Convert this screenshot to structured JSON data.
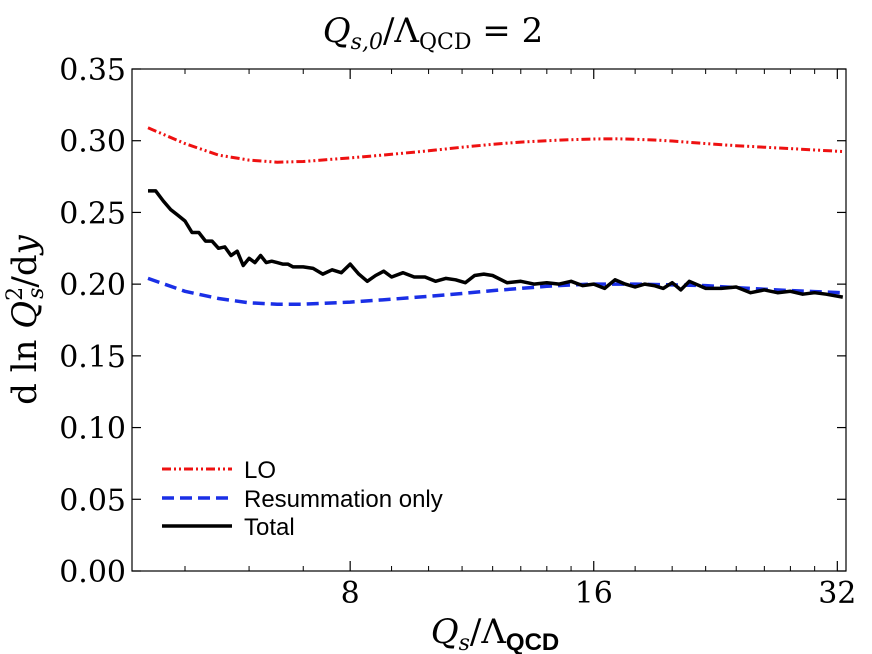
{
  "chart_data": {
    "type": "line",
    "title": "Q_{s,0}/Λ_QCD = 2",
    "title_parts": {
      "q": "Q",
      "sub": "s,0",
      "rest": "/Λ",
      "lam_sub": "QCD",
      "eq": " = 2"
    },
    "xlabel": "Q_s/Λ_QCD",
    "xlabel_parts": {
      "q": "Q",
      "sub": "s",
      "rest": "/Λ",
      "lam_sub": "QCD"
    },
    "ylabel": "d ln Q_s^2/dy",
    "ylabel_parts": {
      "pre": "d ln ",
      "q": "Q",
      "sup": "2",
      "sub": "s",
      "post": "/d",
      "y": "y"
    },
    "xscale": "log2",
    "xlim": [
      4.3,
      32.8
    ],
    "ylim": [
      0.0,
      0.35
    ],
    "x_ticks": [
      8,
      16,
      32
    ],
    "x_tick_labels": [
      "8",
      "16",
      "32"
    ],
    "y_ticks": [
      0.0,
      0.05,
      0.1,
      0.15,
      0.2,
      0.25,
      0.3,
      0.35
    ],
    "y_tick_labels": [
      "0.00",
      "0.05",
      "0.10",
      "0.15",
      "0.20",
      "0.25",
      "0.30",
      "0.35"
    ],
    "legend_position": "bottom-left",
    "series": [
      {
        "name": "LO",
        "color": "#ee1111",
        "style": "dashdot",
        "x": [
          4.5,
          5.0,
          5.5,
          6.0,
          6.5,
          7.0,
          8.0,
          9.0,
          10.0,
          11.0,
          12.0,
          13.0,
          14.0,
          15.0,
          16.0,
          17.0,
          18.0,
          19.0,
          20.0,
          22.0,
          24.0,
          26.0,
          28.0,
          30.0,
          32.5
        ],
        "values": [
          0.309,
          0.298,
          0.29,
          0.2865,
          0.285,
          0.2855,
          0.288,
          0.2905,
          0.293,
          0.2955,
          0.2975,
          0.299,
          0.3,
          0.3007,
          0.3012,
          0.3013,
          0.301,
          0.3005,
          0.2998,
          0.298,
          0.2965,
          0.2955,
          0.2945,
          0.2935,
          0.2925
        ]
      },
      {
        "name": "Resummation only",
        "color": "#1a2fe6",
        "style": "dashed",
        "x": [
          4.5,
          5.0,
          5.5,
          6.0,
          6.5,
          7.0,
          8.0,
          9.0,
          10.0,
          11.0,
          12.0,
          13.0,
          14.0,
          15.0,
          16.0,
          17.0,
          18.0,
          20.0,
          22.0,
          24.0,
          26.0,
          28.0,
          30.0,
          32.5
        ],
        "values": [
          0.204,
          0.195,
          0.19,
          0.187,
          0.186,
          0.186,
          0.1875,
          0.1895,
          0.1915,
          0.1935,
          0.1955,
          0.197,
          0.1985,
          0.1995,
          0.2,
          0.2,
          0.2,
          0.1995,
          0.199,
          0.1975,
          0.1965,
          0.1955,
          0.1948,
          0.194
        ]
      },
      {
        "name": "Total",
        "color": "#000000",
        "style": "solid",
        "x": [
          4.5,
          4.6,
          4.7,
          4.8,
          4.9,
          5.0,
          5.1,
          5.2,
          5.3,
          5.4,
          5.5,
          5.6,
          5.7,
          5.8,
          5.9,
          6.0,
          6.1,
          6.2,
          6.3,
          6.4,
          6.5,
          6.6,
          6.7,
          6.8,
          7.0,
          7.2,
          7.4,
          7.6,
          7.8,
          8.0,
          8.2,
          8.4,
          8.6,
          8.8,
          9.0,
          9.3,
          9.6,
          9.9,
          10.2,
          10.5,
          10.8,
          11.1,
          11.4,
          11.7,
          12.0,
          12.5,
          13.0,
          13.5,
          14.0,
          14.5,
          15.0,
          15.5,
          16.0,
          16.5,
          17.0,
          17.5,
          18.0,
          18.5,
          19.0,
          19.5,
          20.0,
          20.5,
          21.0,
          22.0,
          23.0,
          24.0,
          25.0,
          26.0,
          27.0,
          28.0,
          29.0,
          30.0,
          31.0,
          32.5
        ],
        "values": [
          0.265,
          0.265,
          0.258,
          0.252,
          0.248,
          0.244,
          0.236,
          0.236,
          0.23,
          0.23,
          0.225,
          0.226,
          0.22,
          0.223,
          0.213,
          0.218,
          0.215,
          0.22,
          0.215,
          0.216,
          0.215,
          0.214,
          0.214,
          0.212,
          0.212,
          0.211,
          0.207,
          0.21,
          0.208,
          0.214,
          0.207,
          0.202,
          0.206,
          0.209,
          0.205,
          0.208,
          0.205,
          0.205,
          0.202,
          0.204,
          0.203,
          0.201,
          0.206,
          0.207,
          0.206,
          0.201,
          0.202,
          0.2,
          0.201,
          0.2,
          0.202,
          0.199,
          0.2,
          0.197,
          0.203,
          0.2,
          0.198,
          0.2,
          0.199,
          0.197,
          0.201,
          0.196,
          0.202,
          0.197,
          0.197,
          0.198,
          0.194,
          0.196,
          0.194,
          0.195,
          0.193,
          0.194,
          0.193,
          0.191
        ]
      }
    ]
  }
}
